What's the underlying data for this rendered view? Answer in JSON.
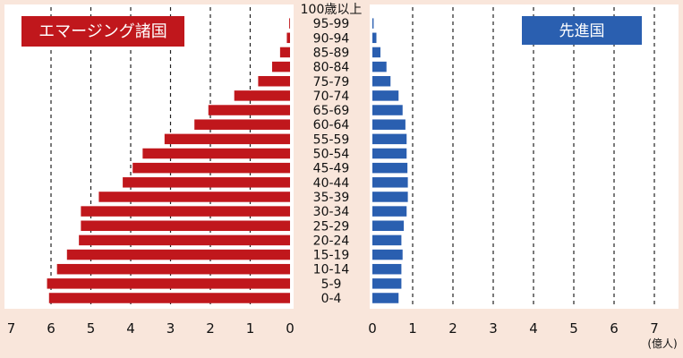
{
  "chart_data": {
    "type": "bar",
    "orientation": "horizontal",
    "layout": "population-pyramid",
    "unit": "(億人)",
    "categories": [
      "0-4",
      "5-9",
      "10-14",
      "15-19",
      "20-24",
      "25-29",
      "30-34",
      "35-39",
      "40-44",
      "45-49",
      "50-54",
      "55-59",
      "60-64",
      "65-69",
      "70-74",
      "75-79",
      "80-84",
      "85-89",
      "90-94",
      "95-99",
      "100歳以上"
    ],
    "series": [
      {
        "name": "エマージング諸国",
        "color": "#c0171c",
        "side": "left",
        "values": [
          6.05,
          6.1,
          5.85,
          5.6,
          5.3,
          5.25,
          5.25,
          4.8,
          4.2,
          3.95,
          3.7,
          3.15,
          2.4,
          2.05,
          1.4,
          0.8,
          0.45,
          0.25,
          0.08,
          0.02,
          0.0
        ]
      },
      {
        "name": "先進国",
        "color": "#2a5fb0",
        "side": "right",
        "values": [
          0.65,
          0.72,
          0.72,
          0.75,
          0.72,
          0.78,
          0.85,
          0.88,
          0.88,
          0.87,
          0.85,
          0.85,
          0.82,
          0.75,
          0.65,
          0.45,
          0.35,
          0.2,
          0.1,
          0.03,
          0.0
        ]
      }
    ],
    "left_axis": {
      "ticks": [
        "7",
        "6",
        "5",
        "4",
        "3",
        "2",
        "1",
        "0"
      ],
      "range": [
        0,
        7
      ],
      "direction": "reversed"
    },
    "right_axis": {
      "ticks": [
        "0",
        "1",
        "2",
        "3",
        "4",
        "5",
        "6",
        "7"
      ],
      "range": [
        0,
        7
      ]
    },
    "grid": {
      "vertical": true,
      "style": "dashed"
    },
    "legend": "top-left and top-right panel labels"
  }
}
